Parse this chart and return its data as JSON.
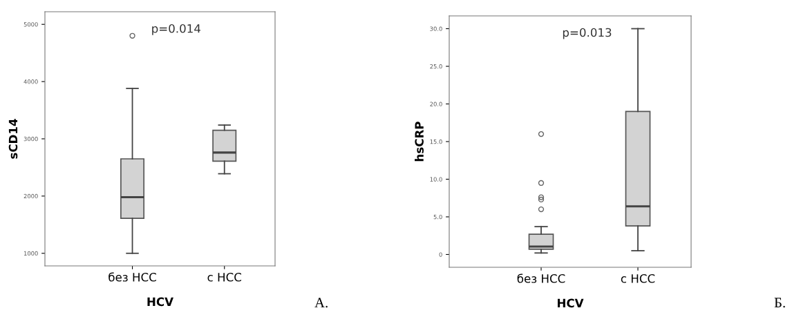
{
  "chart_data": [
    {
      "type": "box",
      "categories": [
        "без HCC",
        "с HCC"
      ],
      "xlabel": "HCV",
      "ylabel": "sCD14",
      "ylim": [
        780,
        5220
      ],
      "yticks": [
        1000,
        2000,
        3000,
        4000,
        5000
      ],
      "color": "#d3d3d3",
      "grid": false,
      "legend": false,
      "annotations": [
        "p=0.014",
        "А."
      ],
      "boxes": [
        {
          "low": 1000,
          "q1": 1610,
          "median": 1980,
          "q3": 2650,
          "high": 3880,
          "outliers": [
            4800
          ]
        },
        {
          "low": 2390,
          "q1": 2610,
          "median": 2760,
          "q3": 3150,
          "high": 3240
        }
      ]
    },
    {
      "type": "box",
      "categories": [
        "без HCC",
        "с HCC"
      ],
      "xlabel": "HCV",
      "ylabel": "hsCRP",
      "ylim": [
        -1.7,
        31.7
      ],
      "yticks": [
        {
          "value": 0,
          "label": "0"
        },
        {
          "value": 5,
          "label": "5.0"
        },
        {
          "value": 10,
          "label": "10.0"
        },
        {
          "value": 15,
          "label": "15.0"
        },
        {
          "value": 20,
          "label": "20.0"
        },
        {
          "value": 25,
          "label": "25.0"
        },
        {
          "value": 30,
          "label": "30.0"
        }
      ],
      "color": "#d3d3d3",
      "grid": false,
      "legend": false,
      "annotations": [
        "p=0.013",
        "Б."
      ],
      "boxes": [
        {
          "low": 0.2,
          "q1": 0.7,
          "median": 1.05,
          "q3": 2.7,
          "high": 3.7,
          "outliers": [
            6.0,
            7.3,
            7.6,
            9.5,
            16.0
          ]
        },
        {
          "low": 0.5,
          "q1": 3.8,
          "median": 6.4,
          "q3": 19,
          "high": 30
        }
      ]
    }
  ]
}
